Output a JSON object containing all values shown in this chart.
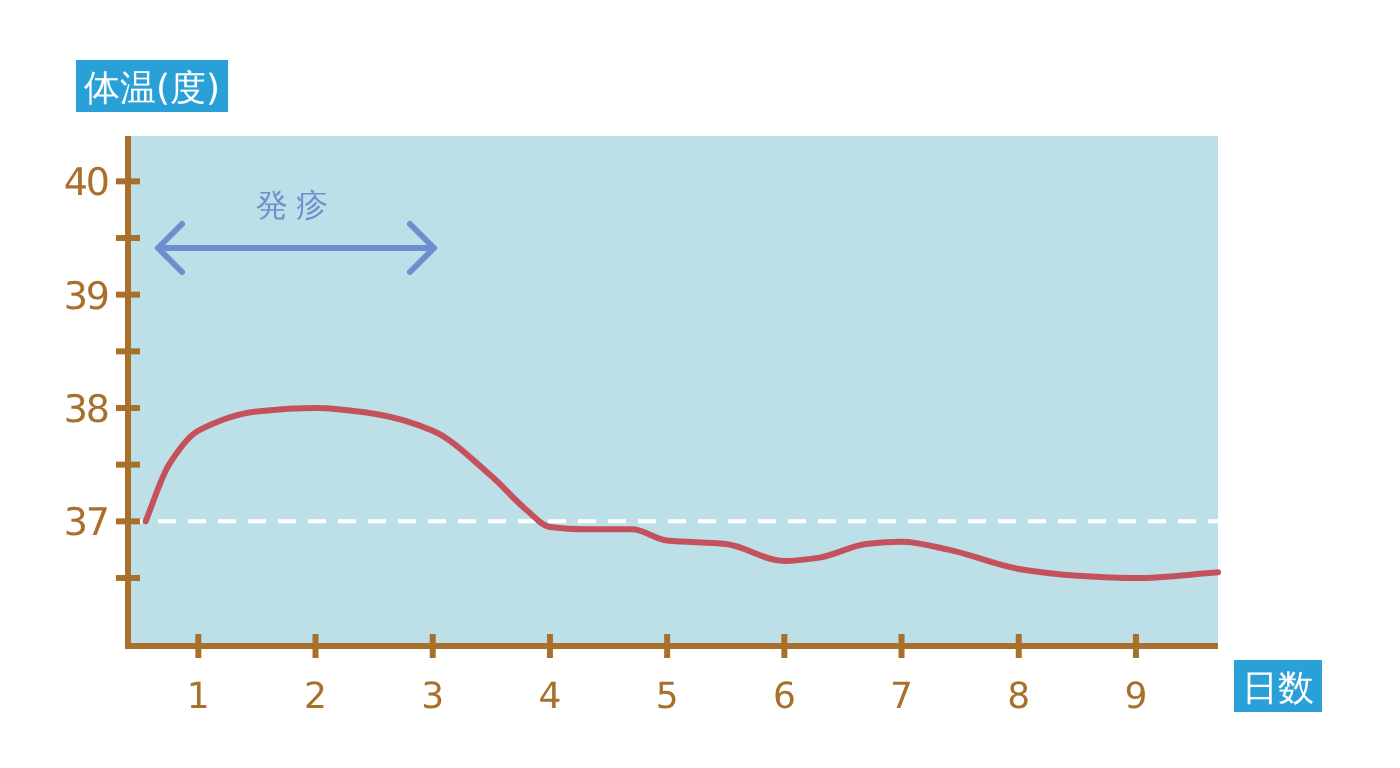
{
  "chart_data": {
    "type": "line",
    "xlabel": "日数",
    "ylabel": "体温(度)",
    "x": [
      0.55,
      0.75,
      1,
      1.5,
      2,
      2.5,
      3,
      3.5,
      3.8,
      4,
      4.3,
      4.7,
      5,
      5.5,
      6,
      6.3,
      6.7,
      7,
      7.4,
      8,
      8.5,
      9,
      9.7
    ],
    "series": [
      {
        "color": "#c4515b",
        "values": [
          37.0,
          37.5,
          37.8,
          37.97,
          38.0,
          37.95,
          37.8,
          37.4,
          37.1,
          36.95,
          36.93,
          36.93,
          36.83,
          36.8,
          36.65,
          36.68,
          36.8,
          36.82,
          36.75,
          36.58,
          36.52,
          36.5,
          36.55
        ]
      }
    ],
    "xlim": [
      0.4,
      9.7
    ],
    "ylim": [
      35.9,
      40.4
    ],
    "xticks": [
      1,
      2,
      3,
      4,
      5,
      6,
      7,
      8,
      9
    ],
    "yticks": [
      {
        "value": 36.5,
        "label": null
      },
      37,
      {
        "value": 37.5,
        "label": null
      },
      38,
      {
        "value": 38.5,
        "label": null
      },
      39,
      {
        "value": 39.5,
        "label": null
      },
      40
    ],
    "ref_lines": [
      {
        "axis": "y",
        "value": 37,
        "color": "#ffffff",
        "line_style": "dashed"
      }
    ],
    "annotations": [
      "発疹"
    ],
    "grid": false,
    "marker": "none",
    "line_style": "solid"
  }
}
